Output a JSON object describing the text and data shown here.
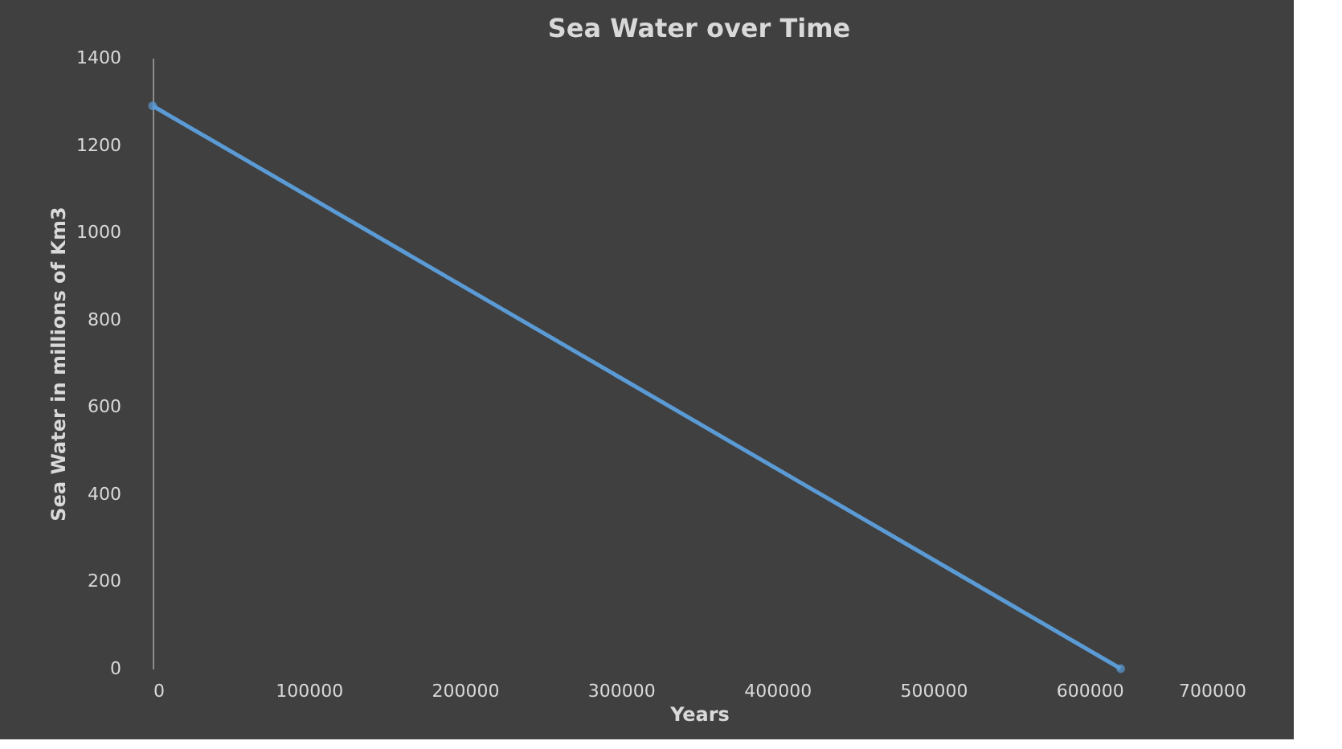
{
  "chart_data": {
    "type": "line",
    "title": "Sea Water over Time",
    "xlabel": "Years",
    "ylabel": "Sea Water in millions of Km3",
    "x": [
      0,
      620000
    ],
    "series": [
      {
        "color": "#5b9bd5",
        "values": [
          1290,
          0
        ]
      }
    ],
    "xlim": [
      0,
      700000
    ],
    "xticks": [
      0,
      100000,
      200000,
      300000,
      400000,
      500000,
      600000,
      700000
    ],
    "ylim": [
      0,
      1400
    ],
    "yticks": [
      0,
      200,
      400,
      600,
      800,
      1000,
      1200,
      1400
    ],
    "grid": false,
    "marker": "circle",
    "line_style": "solid"
  }
}
